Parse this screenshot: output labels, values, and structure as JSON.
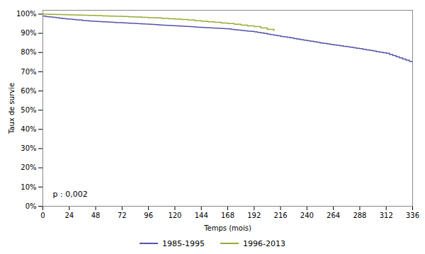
{
  "chart_data": {
    "type": "line",
    "xlabel": "Temps (mois)",
    "ylabel": "Taux de survie",
    "xlim": [
      0,
      336
    ],
    "ylim": [
      0,
      1.02
    ],
    "xticks": [
      0,
      24,
      48,
      72,
      96,
      120,
      144,
      168,
      192,
      216,
      240,
      264,
      288,
      312,
      336
    ],
    "yticks": [
      {
        "value": 0.0,
        "label": "0%"
      },
      {
        "value": 0.1,
        "label": "10%"
      },
      {
        "value": 0.2,
        "label": "20%"
      },
      {
        "value": 0.3,
        "label": "30%"
      },
      {
        "value": 0.4,
        "label": "40%"
      },
      {
        "value": 0.5,
        "label": "50%"
      },
      {
        "value": 0.6,
        "label": "60%"
      },
      {
        "value": 0.7,
        "label": "70%"
      },
      {
        "value": 0.8,
        "label": "80%"
      },
      {
        "value": 0.9,
        "label": "90%"
      },
      {
        "value": 1.0,
        "label": "100%"
      }
    ],
    "annotation": "p : 0,002",
    "grid": false,
    "legend": "bottom",
    "line_style": "step",
    "series": [
      {
        "name": "1985-1995",
        "color": "#5555aa",
        "x": [
          0,
          3,
          6,
          9,
          12,
          15,
          18,
          21,
          24,
          27,
          30,
          33,
          36,
          39,
          42,
          45,
          48,
          51,
          54,
          57,
          60,
          63,
          66,
          69,
          72,
          75,
          78,
          81,
          84,
          87,
          90,
          93,
          96,
          99,
          102,
          105,
          108,
          111,
          114,
          117,
          120,
          123,
          126,
          129,
          132,
          135,
          138,
          141,
          144,
          147,
          150,
          153,
          156,
          159,
          162,
          165,
          168,
          171,
          174,
          177,
          180,
          183,
          186,
          189,
          192,
          195,
          198,
          201,
          204,
          207,
          210,
          213,
          216,
          219,
          222,
          225,
          228,
          231,
          234,
          237,
          240,
          243,
          246,
          249,
          252,
          255,
          258,
          261,
          264,
          267,
          270,
          273,
          276,
          279,
          282,
          285,
          288,
          291,
          294,
          297,
          300,
          303,
          306,
          309,
          312,
          315,
          318,
          321,
          324,
          327,
          330,
          333,
          336
        ],
        "values": [
          0.99,
          0.987,
          0.985,
          0.983,
          0.981,
          0.979,
          0.977,
          0.975,
          0.974,
          0.972,
          0.97,
          0.969,
          0.967,
          0.966,
          0.964,
          0.963,
          0.962,
          0.961,
          0.96,
          0.959,
          0.958,
          0.957,
          0.956,
          0.956,
          0.955,
          0.954,
          0.953,
          0.952,
          0.951,
          0.95,
          0.949,
          0.948,
          0.947,
          0.946,
          0.945,
          0.944,
          0.943,
          0.942,
          0.941,
          0.94,
          0.939,
          0.938,
          0.937,
          0.936,
          0.935,
          0.934,
          0.933,
          0.932,
          0.931,
          0.93,
          0.929,
          0.928,
          0.927,
          0.926,
          0.925,
          0.924,
          0.923,
          0.921,
          0.919,
          0.917,
          0.915,
          0.913,
          0.911,
          0.91,
          0.908,
          0.905,
          0.902,
          0.899,
          0.896,
          0.893,
          0.89,
          0.887,
          0.884,
          0.882,
          0.879,
          0.876,
          0.873,
          0.87,
          0.867,
          0.864,
          0.862,
          0.859,
          0.856,
          0.853,
          0.85,
          0.848,
          0.845,
          0.842,
          0.84,
          0.838,
          0.835,
          0.832,
          0.83,
          0.828,
          0.825,
          0.822,
          0.82,
          0.817,
          0.814,
          0.811,
          0.808,
          0.805,
          0.802,
          0.799,
          0.796,
          0.79,
          0.784,
          0.778,
          0.772,
          0.766,
          0.76,
          0.754,
          0.748
        ]
      },
      {
        "name": "1996-2013",
        "color": "#99aa33",
        "x": [
          0,
          6,
          12,
          18,
          24,
          30,
          36,
          42,
          48,
          54,
          60,
          66,
          72,
          78,
          84,
          90,
          96,
          102,
          108,
          114,
          120,
          126,
          132,
          138,
          144,
          150,
          156,
          162,
          168,
          174,
          180,
          186,
          192,
          198,
          204,
          210
        ],
        "values": [
          1.0,
          0.999,
          0.998,
          0.997,
          0.996,
          0.995,
          0.994,
          0.993,
          0.992,
          0.991,
          0.99,
          0.989,
          0.988,
          0.986,
          0.985,
          0.983,
          0.981,
          0.98,
          0.978,
          0.976,
          0.974,
          0.972,
          0.969,
          0.966,
          0.963,
          0.96,
          0.957,
          0.954,
          0.951,
          0.947,
          0.943,
          0.939,
          0.935,
          0.928,
          0.921,
          0.914
        ]
      }
    ]
  }
}
